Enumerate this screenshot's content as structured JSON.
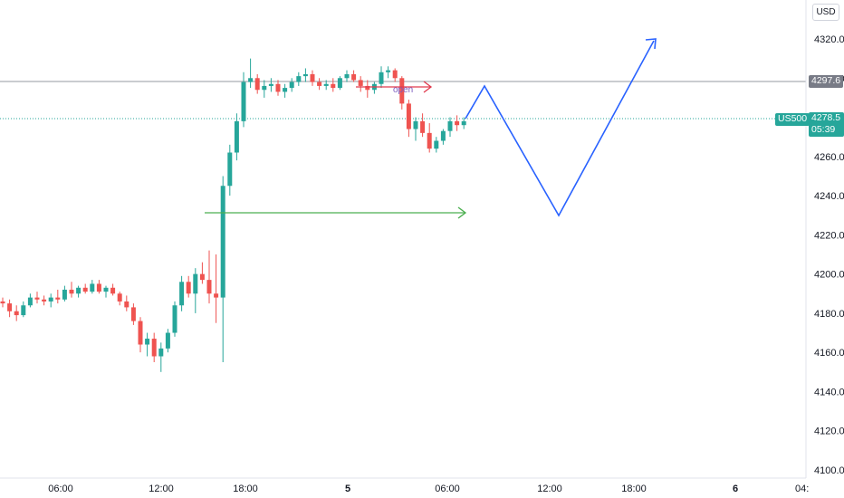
{
  "currency": "USD",
  "symbol": "US500",
  "last_price": "4278.5",
  "countdown": "05:39",
  "hline_price": "4297.6",
  "annotation": "open",
  "colors": {
    "up": "#26a69a",
    "down": "#ef5350",
    "zigzag": "#2962ff",
    "red_arrow": "#e03a4e",
    "green_arrow": "#4caf50",
    "hline": "#9598a1"
  },
  "chart_data": {
    "type": "candlestick",
    "ylim": [
      4100,
      4325
    ],
    "y_ticks": [
      "4320.0",
      "4300.0",
      "4280.0",
      "4260.0",
      "4240.0",
      "4220.0",
      "4200.0",
      "4180.0",
      "4160.0",
      "4140.0",
      "4120.0",
      "4100.0"
    ],
    "x_ticks": [
      "06:00",
      "12:00",
      "18:00",
      "5",
      "06:00",
      "12:00",
      "18:00",
      "6",
      "04:"
    ],
    "ohlc": [
      [
        4186,
        4188,
        4183,
        4185
      ],
      [
        4185,
        4187,
        4178,
        4181
      ],
      [
        4181,
        4184,
        4176,
        4179
      ],
      [
        4179,
        4186,
        4178,
        4184
      ],
      [
        4184,
        4190,
        4183,
        4188
      ],
      [
        4188,
        4191,
        4185,
        4187
      ],
      [
        4187,
        4189,
        4184,
        4186
      ],
      [
        4186,
        4190,
        4183,
        4188
      ],
      [
        4188,
        4192,
        4185,
        4187
      ],
      [
        4187,
        4194,
        4186,
        4192
      ],
      [
        4192,
        4196,
        4188,
        4190
      ],
      [
        4190,
        4194,
        4188,
        4193
      ],
      [
        4193,
        4195,
        4190,
        4191
      ],
      [
        4191,
        4197,
        4190,
        4195
      ],
      [
        4195,
        4197,
        4190,
        4191
      ],
      [
        4191,
        4194,
        4188,
        4193
      ],
      [
        4193,
        4195,
        4189,
        4190
      ],
      [
        4190,
        4191,
        4184,
        4186
      ],
      [
        4186,
        4189,
        4181,
        4183
      ],
      [
        4183,
        4185,
        4174,
        4176
      ],
      [
        4176,
        4178,
        4160,
        4164
      ],
      [
        4164,
        4170,
        4158,
        4167
      ],
      [
        4167,
        4170,
        4155,
        4158
      ],
      [
        4158,
        4165,
        4150,
        4162
      ],
      [
        4162,
        4172,
        4160,
        4170
      ],
      [
        4170,
        4186,
        4168,
        4184
      ],
      [
        4184,
        4199,
        4181,
        4196
      ],
      [
        4196,
        4199,
        4188,
        4190
      ],
      [
        4190,
        4203,
        4180,
        4200
      ],
      [
        4200,
        4206,
        4195,
        4197
      ],
      [
        4197,
        4212,
        4185,
        4190
      ],
      [
        4190,
        4210,
        4175,
        4188
      ],
      [
        4188,
        4250,
        4155,
        4245
      ],
      [
        4245,
        4266,
        4240,
        4262
      ],
      [
        4262,
        4282,
        4258,
        4278
      ],
      [
        4278,
        4303,
        4275,
        4298
      ],
      [
        4298,
        4310,
        4295,
        4300
      ],
      [
        4300,
        4302,
        4292,
        4294
      ],
      [
        4294,
        4299,
        4290,
        4296
      ],
      [
        4296,
        4300,
        4293,
        4297
      ],
      [
        4297,
        4299,
        4291,
        4293
      ],
      [
        4293,
        4297,
        4290,
        4295
      ],
      [
        4295,
        4300,
        4293,
        4298
      ],
      [
        4298,
        4303,
        4296,
        4301
      ],
      [
        4301,
        4305,
        4298,
        4302
      ],
      [
        4302,
        4304,
        4296,
        4298
      ],
      [
        4298,
        4300,
        4294,
        4296
      ],
      [
        4296,
        4299,
        4294,
        4297
      ],
      [
        4297,
        4300,
        4293,
        4295
      ],
      [
        4295,
        4301,
        4294,
        4300
      ],
      [
        4300,
        4304,
        4298,
        4302
      ],
      [
        4302,
        4304,
        4298,
        4299
      ],
      [
        4299,
        4301,
        4293,
        4296
      ],
      [
        4296,
        4299,
        4290,
        4294
      ],
      [
        4294,
        4298,
        4292,
        4297
      ],
      [
        4297,
        4306,
        4295,
        4303
      ],
      [
        4303,
        4306,
        4300,
        4304
      ],
      [
        4304,
        4305,
        4298,
        4300
      ],
      [
        4300,
        4301,
        4284,
        4287
      ],
      [
        4287,
        4289,
        4270,
        4274
      ],
      [
        4274,
        4280,
        4268,
        4278
      ],
      [
        4278,
        4282,
        4270,
        4272
      ],
      [
        4272,
        4277,
        4262,
        4264
      ],
      [
        4264,
        4270,
        4262,
        4268
      ],
      [
        4268,
        4274,
        4266,
        4273
      ],
      [
        4273,
        4280,
        4270,
        4278
      ],
      [
        4278,
        4281,
        4273,
        4276
      ],
      [
        4276,
        4280,
        4274,
        4278
      ]
    ],
    "horizontal_line": 4297.6,
    "current_price": 4278.5
  }
}
